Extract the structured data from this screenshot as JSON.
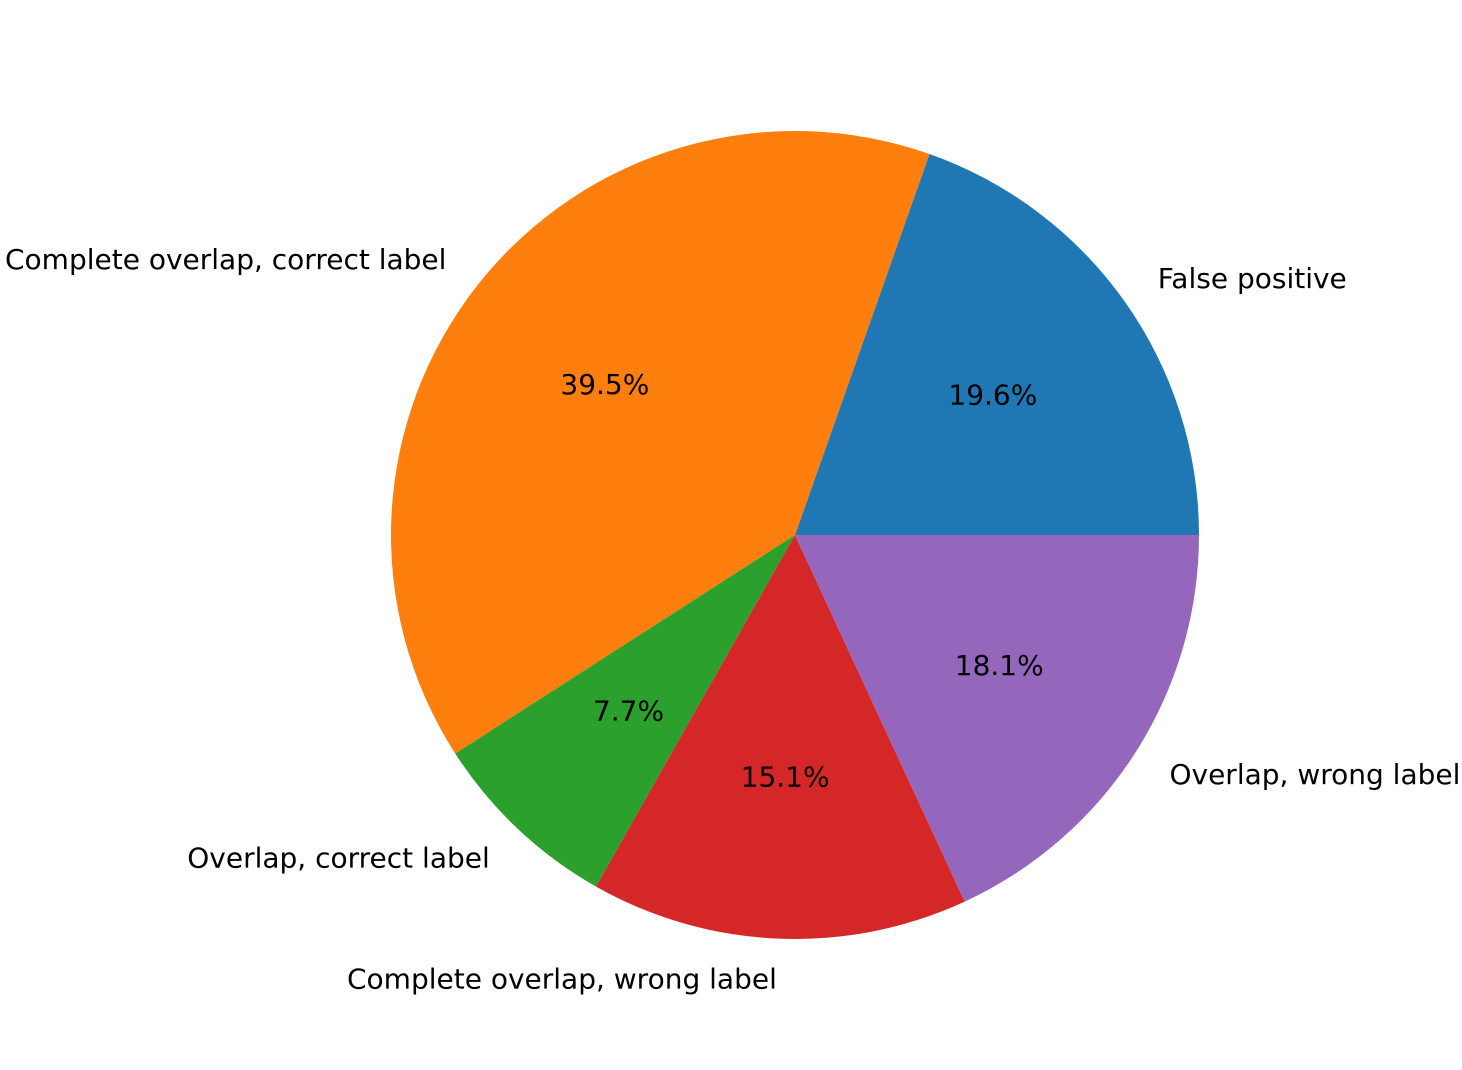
{
  "chart_data": {
    "type": "pie",
    "title": "",
    "start_angle_deg": 0,
    "direction": "counterclockwise",
    "slices": [
      {
        "label": "False positive",
        "value": 19.6,
        "pct_text": "19.6%",
        "color": "#1f77b4"
      },
      {
        "label": "Complete overlap, correct label",
        "value": 39.5,
        "pct_text": "39.5%",
        "color": "#ff7f0e"
      },
      {
        "label": "Overlap, correct label",
        "value": 7.7,
        "pct_text": "7.7%",
        "color": "#2ca02c"
      },
      {
        "label": "Complete overlap, wrong label",
        "value": 15.1,
        "pct_text": "15.1%",
        "color": "#d62728"
      },
      {
        "label": "Overlap, wrong label",
        "value": 18.1,
        "pct_text": "18.1%",
        "color": "#9467bd"
      }
    ]
  }
}
